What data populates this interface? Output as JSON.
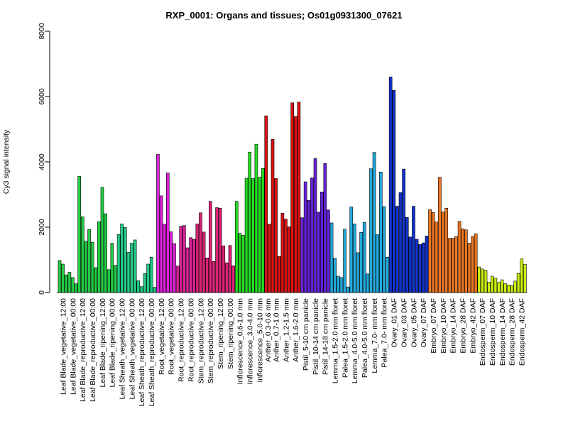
{
  "chart_data": {
    "type": "bar",
    "title": "RXP_0001: Organs and tissues; Os01g0931300_07621",
    "xlabel": "",
    "ylabel": "Cy3 signal intensity",
    "ylim": [
      0,
      8000
    ],
    "yticks": [
      0,
      2000,
      4000,
      6000,
      8000
    ],
    "grid": false,
    "legend": "none",
    "categories": [
      "Leaf Blade_vegetative_12:00",
      "Leaf Blade_vegetative_00:00",
      "Leaf Blade_reproductive_12:00",
      "Leaf Blade_reproductive_00:00",
      "Leaf Blade_ripening_12:00",
      "Leaf Blade_ripening_00:00",
      "Leaf Sheath_vegetative_12:00",
      "Leaf Sheath_vegetative_00:00",
      "Leaf Sheath_reproductive_12:00",
      "Leaf Sheath_reproductive_00:00",
      "Root_vegetative_12:00",
      "Root_vegetative_00:00",
      "Root_reproductive_12:00",
      "Root_reproductive_00:00",
      "Stem_reproductive_12:00",
      "Stem_reproductive_00:00",
      "Stem_ripening_12:00",
      "Stem_ripening_00:00",
      "Inflorescence_0.6-1.0 mm",
      "Inflorescence_3.0-4.0 mm",
      "Inflorescence_5.0-10 mm",
      "Anther_0.3-0.6 mm",
      "Anther_0.7-1.0 mm",
      "Anther_1.2-1.5 mm",
      "Anther_1.6-2.0 mm",
      "Pistil_5-10 cm panicle",
      "Pistil_10-14 cm panicle",
      "Pistil_14-18 cm panicle",
      "Lemma_1.5-2.0 mm floret",
      "Palea_1.5-2.0 mm floret",
      "Lemma_4.0-5.0 mm floret",
      "Palea_4.0-5.0 mm floret",
      "Lemma_7.0- mm floret",
      "Palea_7.0- mm floret",
      "Ovary_01 DAF",
      "Ovary_03 DAF",
      "Ovary_05 DAF",
      "Ovary_07 DAF",
      "Embryo_07 DAF",
      "Embryo_10 DAF",
      "Embryo_14 DAF",
      "Embryo_28 DAF",
      "Embryo_42 DAF",
      "Endosperm_07 DAF",
      "Endosperm_10 DAF",
      "Endosperm_14 DAF",
      "Endosperm_28 DAF",
      "Endosperm_42 DAF"
    ],
    "groups": [
      {
        "color": "#22cc44",
        "values": [
          980,
          870,
          540
        ]
      },
      {
        "color": "#22cc44",
        "values": [
          620,
          460,
          270
        ]
      },
      {
        "color": "#22cc44",
        "values": [
          3560,
          2320,
          1570
        ]
      },
      {
        "color": "#22cc44",
        "values": [
          1930,
          1540,
          760
        ]
      },
      {
        "color": "#22cc44",
        "values": [
          2170,
          3220,
          2410
        ]
      },
      {
        "color": "#22cc44",
        "values": [
          700,
          1510,
          830
        ]
      },
      {
        "color": "#22cc88",
        "values": [
          1780,
          2100,
          1990
        ]
      },
      {
        "color": "#22cc88",
        "values": [
          1230,
          1510,
          1610
        ]
      },
      {
        "color": "#22cc88",
        "values": [
          360,
          180,
          580
        ]
      },
      {
        "color": "#22cc88",
        "values": [
          870,
          1080,
          160
        ]
      },
      {
        "color": "#dd22dd",
        "values": [
          4230,
          2960,
          2090
        ]
      },
      {
        "color": "#dd22dd",
        "values": [
          3660,
          1860,
          1500
        ]
      },
      {
        "color": "#dd2299",
        "values": [
          810,
          2030,
          2050
        ]
      },
      {
        "color": "#dd2299",
        "values": [
          1370,
          1680,
          1630
        ]
      },
      {
        "color": "#dd2277",
        "values": [
          2100,
          2440,
          1850
        ]
      },
      {
        "color": "#dd2277",
        "values": [
          1060,
          2790,
          950
        ]
      },
      {
        "color": "#dd2277",
        "values": [
          2600,
          2580,
          1430
        ]
      },
      {
        "color": "#dd2277",
        "values": [
          910,
          1440,
          820
        ]
      },
      {
        "color": "#22dd22",
        "values": [
          2790,
          1810,
          1750
        ]
      },
      {
        "color": "#22dd22",
        "values": [
          3500,
          4300,
          3490
        ]
      },
      {
        "color": "#22dd22",
        "values": [
          4540,
          3530,
          3800
        ]
      },
      {
        "color": "#dd1111",
        "values": [
          5410,
          2090
        ]
      },
      {
        "color": "#dd1111",
        "values": [
          4690,
          3490,
          1100
        ]
      },
      {
        "color": "#dd1111",
        "values": [
          2430,
          2250,
          2010
        ]
      },
      {
        "color": "#dd1111",
        "values": [
          5810,
          5390,
          5830
        ]
      },
      {
        "color": "#6622dd",
        "values": [
          2290,
          3390,
          2820
        ]
      },
      {
        "color": "#6622dd",
        "values": [
          3510,
          4100,
          2460
        ]
      },
      {
        "color": "#6622dd",
        "values": [
          3080,
          3950,
          2530
        ]
      },
      {
        "color": "#22aadd",
        "values": [
          2130,
          1050,
          500
        ]
      },
      {
        "color": "#22aadd",
        "values": [
          460,
          1940,
          170
        ]
      },
      {
        "color": "#22aadd",
        "values": [
          2620,
          2100,
          1220
        ]
      },
      {
        "color": "#22aadd",
        "values": [
          1840,
          2150,
          570
        ]
      },
      {
        "color": "#22aadd",
        "values": [
          3790,
          4290,
          1770
        ]
      },
      {
        "color": "#22aadd",
        "values": [
          3690,
          2630,
          1080
        ]
      },
      {
        "color": "#1133cc",
        "values": [
          6600,
          6190,
          2640
        ]
      },
      {
        "color": "#1133cc",
        "values": [
          3060,
          3780,
          2300
        ]
      },
      {
        "color": "#1133cc",
        "values": [
          1700,
          2640,
          1630
        ]
      },
      {
        "color": "#1133cc",
        "values": [
          1470,
          1520,
          1730
        ]
      },
      {
        "color": "#ee7722",
        "values": [
          2540,
          2450,
          2160
        ]
      },
      {
        "color": "#ee7722",
        "values": [
          3530,
          2470,
          2580
        ]
      },
      {
        "color": "#ee7722",
        "values": [
          1660,
          1660,
          1720
        ]
      },
      {
        "color": "#ee7722",
        "values": [
          2180,
          1950,
          1920
        ]
      },
      {
        "color": "#ee7722",
        "values": [
          1510,
          1710,
          1800
        ]
      },
      {
        "color": "#ccee11",
        "values": [
          780,
          720,
          680
        ]
      },
      {
        "color": "#ccee11",
        "values": [
          320,
          500,
          440
        ]
      },
      {
        "color": "#ccee11",
        "values": [
          310,
          390,
          270
        ]
      },
      {
        "color": "#ccee11",
        "values": [
          230,
          220,
          350
        ]
      },
      {
        "color": "#ccee11",
        "values": [
          580,
          1030,
          860
        ]
      }
    ]
  }
}
